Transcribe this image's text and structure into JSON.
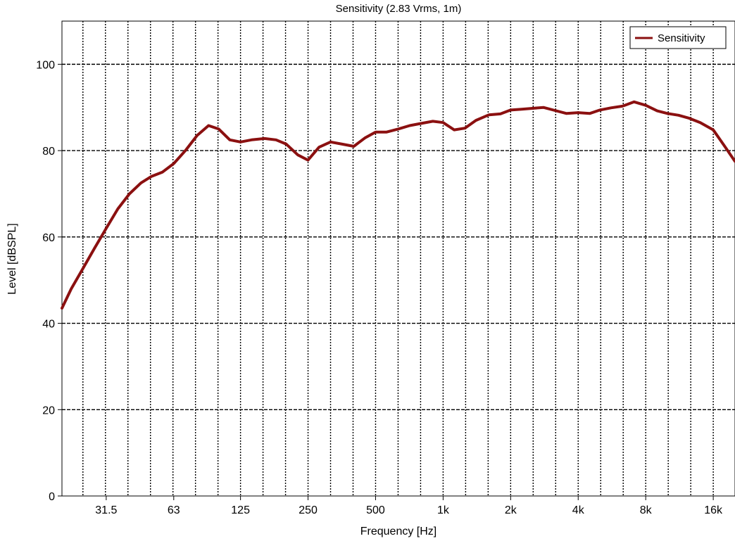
{
  "chart_data": {
    "type": "line",
    "title": "Sensitivity (2.83 Vrms, 1m)",
    "xlabel": "Frequency [Hz]",
    "ylabel": "Level [dBSPL]",
    "x_scale": "log",
    "xlim": [
      20,
      20000
    ],
    "ylim": [
      0,
      110
    ],
    "x_ticks": [
      31.5,
      63,
      125,
      250,
      500,
      1000,
      2000,
      4000,
      8000,
      16000
    ],
    "x_tick_labels": [
      "31.5",
      "63",
      "125",
      "250",
      "500",
      "1k",
      "2k",
      "4k",
      "8k",
      "16k"
    ],
    "y_ticks": [
      0,
      20,
      40,
      60,
      80,
      100
    ],
    "y_tick_labels": [
      "0",
      "20",
      "40",
      "60",
      "80",
      "100"
    ],
    "grid": true,
    "legend": {
      "position": "top-right",
      "entries": [
        "Sensitivity"
      ]
    },
    "series": [
      {
        "name": "Sensitivity",
        "color": "#8b1010",
        "x": [
          20,
          22,
          25,
          28,
          31.5,
          35.5,
          40,
          45,
          50,
          56,
          63,
          71,
          80,
          90,
          100,
          112,
          125,
          140,
          160,
          180,
          200,
          225,
          250,
          280,
          315,
          355,
          400,
          450,
          500,
          560,
          630,
          710,
          800,
          900,
          1000,
          1120,
          1250,
          1400,
          1600,
          1800,
          2000,
          2240,
          2500,
          2800,
          3150,
          3550,
          4000,
          4500,
          5000,
          5600,
          6300,
          7100,
          8000,
          9000,
          10000,
          11200,
          12500,
          14000,
          16000,
          18000,
          20000
        ],
        "y": [
          43.5,
          48,
          53,
          57.5,
          62,
          66.5,
          70,
          72.5,
          74,
          75,
          77,
          80,
          83.5,
          85.8,
          85,
          82.5,
          82,
          82.5,
          82.8,
          82.5,
          81.5,
          79,
          77.8,
          80.8,
          82,
          81.5,
          81,
          83,
          84.3,
          84.3,
          85,
          85.8,
          86.3,
          86.8,
          86.5,
          84.8,
          85.2,
          87,
          88.3,
          88.5,
          89.4,
          89.6,
          89.8,
          90,
          89.3,
          88.6,
          88.8,
          88.6,
          89.4,
          89.9,
          90.3,
          91.3,
          90.5,
          89.2,
          88.6,
          88.2,
          87.5,
          86.5,
          84.8,
          81,
          77.5
        ]
      }
    ]
  }
}
